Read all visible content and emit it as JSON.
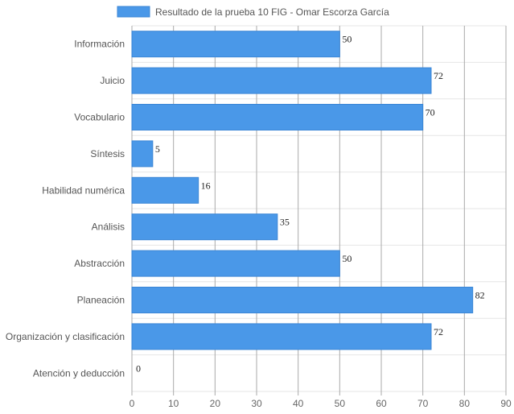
{
  "chart_data": {
    "type": "bar",
    "orientation": "horizontal",
    "categories": [
      "Información",
      "Juicio",
      "Vocabulario",
      "Síntesis",
      "Habilidad numérica",
      "Análisis",
      "Abstracción",
      "Planeación",
      "Organización y clasificación",
      "Atención y deducción"
    ],
    "series": [
      {
        "name": "Resultado de la prueba 10 FIG - Omar Escorza García",
        "values": [
          50,
          72,
          70,
          5,
          16,
          35,
          50,
          82,
          72,
          0
        ],
        "color": "#4a98e8"
      }
    ],
    "xlim": [
      0,
      90
    ],
    "xticks": [
      0,
      10,
      20,
      30,
      40,
      50,
      60,
      70,
      80,
      90
    ],
    "grid": true,
    "legend_position": "top",
    "data_labels": true
  },
  "colors": {
    "bar_fill": "#4a98e8",
    "bar_stroke": "#3b86d6",
    "vertical_grid": "#aaaaaa",
    "horizontal_grid": "#e6e6e6"
  }
}
